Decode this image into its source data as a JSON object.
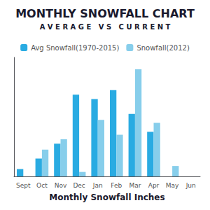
{
  "chart_data": {
    "type": "bar",
    "title": "MONTHLY SNOWFALL CHART",
    "subtitle": "A V E R A G E   V S   C U R R E N T",
    "categories": [
      "Sept",
      "Oct",
      "Nov",
      "Dec",
      "Jan",
      "Feb",
      "Mar",
      "Apr",
      "May",
      "Jun"
    ],
    "series": [
      {
        "name": "Avg Snowfall(1970-2015)",
        "color": "#29ABE2",
        "values": [
          0.5,
          1.2,
          2.2,
          5.5,
          5.2,
          5.8,
          4.2,
          3.0,
          0.0,
          0.0
        ]
      },
      {
        "name": "Snowfall(2012)",
        "color": "#87CEEB",
        "values": [
          0.0,
          1.8,
          2.5,
          0.3,
          3.8,
          2.8,
          7.2,
          3.6,
          0.7,
          0.0
        ]
      }
    ],
    "xlabel": "Monthly Snowfall Inches",
    "ylim": [
      0,
      8
    ],
    "yticks": [],
    "tick_labels": "x",
    "grid": false,
    "legend": "top"
  }
}
